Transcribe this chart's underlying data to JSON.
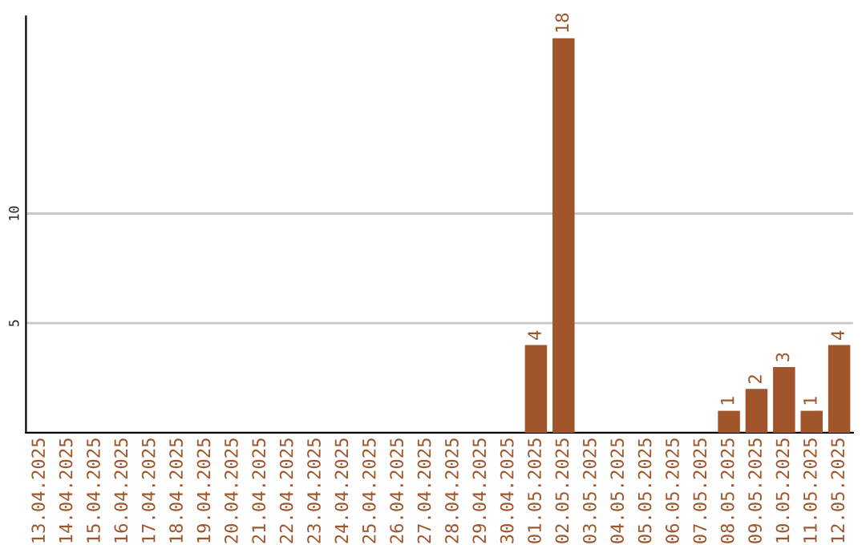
{
  "chart_data": {
    "type": "bar",
    "categories": [
      "13.04.2025",
      "14.04.2025",
      "15.04.2025",
      "16.04.2025",
      "17.04.2025",
      "18.04.2025",
      "19.04.2025",
      "20.04.2025",
      "21.04.2025",
      "22.04.2025",
      "23.04.2025",
      "24.04.2025",
      "25.04.2025",
      "26.04.2025",
      "27.04.2025",
      "28.04.2025",
      "29.04.2025",
      "30.04.2025",
      "01.05.2025",
      "02.05.2025",
      "03.05.2025",
      "04.05.2025",
      "05.05.2025",
      "06.05.2025",
      "07.05.2025",
      "08.05.2025",
      "09.05.2025",
      "10.05.2025",
      "11.05.2025",
      "12.05.2025"
    ],
    "values": [
      null,
      null,
      null,
      null,
      null,
      null,
      null,
      null,
      null,
      null,
      null,
      null,
      null,
      null,
      null,
      null,
      null,
      null,
      4,
      18,
      null,
      null,
      null,
      null,
      null,
      1,
      2,
      3,
      1,
      4
    ],
    "value_labels": [
      null,
      null,
      null,
      null,
      null,
      null,
      null,
      null,
      null,
      null,
      null,
      null,
      null,
      null,
      null,
      null,
      null,
      null,
      "4",
      "18",
      null,
      null,
      null,
      null,
      null,
      "1",
      "2",
      "3",
      "1",
      "4"
    ],
    "color": "#a0562a",
    "ylim": [
      0,
      19
    ],
    "yticks": [
      5,
      10
    ],
    "grid": "y"
  }
}
